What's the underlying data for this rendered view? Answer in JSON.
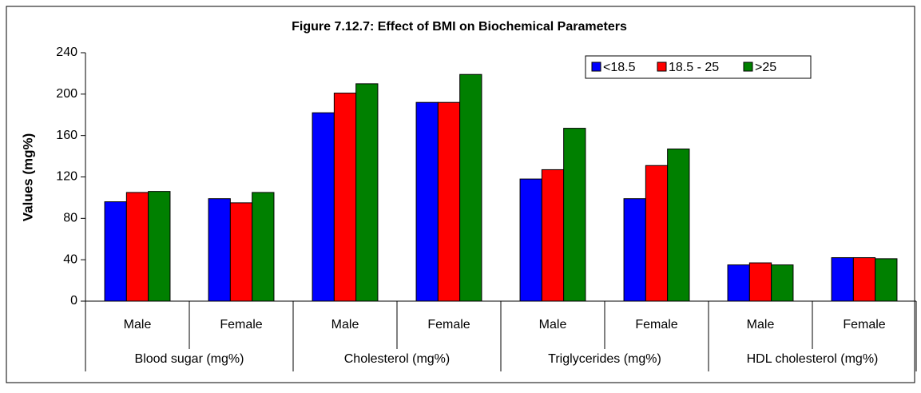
{
  "chart_data": {
    "type": "bar",
    "title": "Figure 7.12.7: Effect of BMI on Biochemical Parameters",
    "y_label": "Values (mg%)",
    "categories": [
      "Male",
      "Female",
      "Male",
      "Female",
      "Male",
      "Female",
      "Male",
      "Female"
    ],
    "groups": [
      "Blood sugar (mg%)",
      "Cholesterol (mg%)",
      "Triglycerides (mg%)",
      "HDL cholesterol (mg%)"
    ],
    "series": [
      {
        "name": "<18.5",
        "color": "#0000ff",
        "values": [
          96,
          99,
          182,
          192,
          118,
          99,
          35,
          42
        ]
      },
      {
        "name": "18.5 - 25",
        "color": "#ff0000",
        "values": [
          105,
          95,
          201,
          192,
          127,
          131,
          37,
          42
        ]
      },
      {
        "name": ">25",
        "color": "#008000",
        "values": [
          106,
          105,
          210,
          219,
          167,
          147,
          35,
          41
        ]
      }
    ],
    "ylim": [
      0,
      240
    ],
    "yticks": [
      0,
      40,
      80,
      120,
      160,
      200,
      240
    ],
    "grid": false,
    "legend": "upper right"
  }
}
